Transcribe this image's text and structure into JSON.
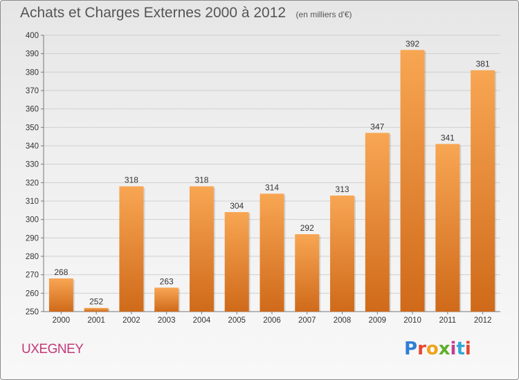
{
  "header": {
    "title": "Achats et Charges Externes 2000 à 2012",
    "unit": "(en milliers d'€)"
  },
  "footer": {
    "commune": "UXEGNEY",
    "logo_text": "Proxiti"
  },
  "colors": {
    "bar_top": "#f8a653",
    "bar_bottom": "#cf6a1a",
    "grid": "#cfcfcf",
    "commune": "#c23a78"
  },
  "chart_data": {
    "type": "bar",
    "categories": [
      "2000",
      "2001",
      "2002",
      "2003",
      "2004",
      "2005",
      "2006",
      "2007",
      "2008",
      "2009",
      "2010",
      "2011",
      "2012"
    ],
    "values": [
      268,
      252,
      318,
      263,
      318,
      304,
      314,
      292,
      313,
      347,
      392,
      341,
      381
    ],
    "title": "Achats et Charges Externes 2000 à 2012",
    "xlabel": "",
    "ylabel": "",
    "ylim": [
      250,
      400
    ],
    "yticks": [
      250,
      260,
      270,
      280,
      290,
      300,
      310,
      320,
      330,
      340,
      350,
      360,
      370,
      380,
      390,
      400
    ],
    "grid": true,
    "legend": "none"
  }
}
